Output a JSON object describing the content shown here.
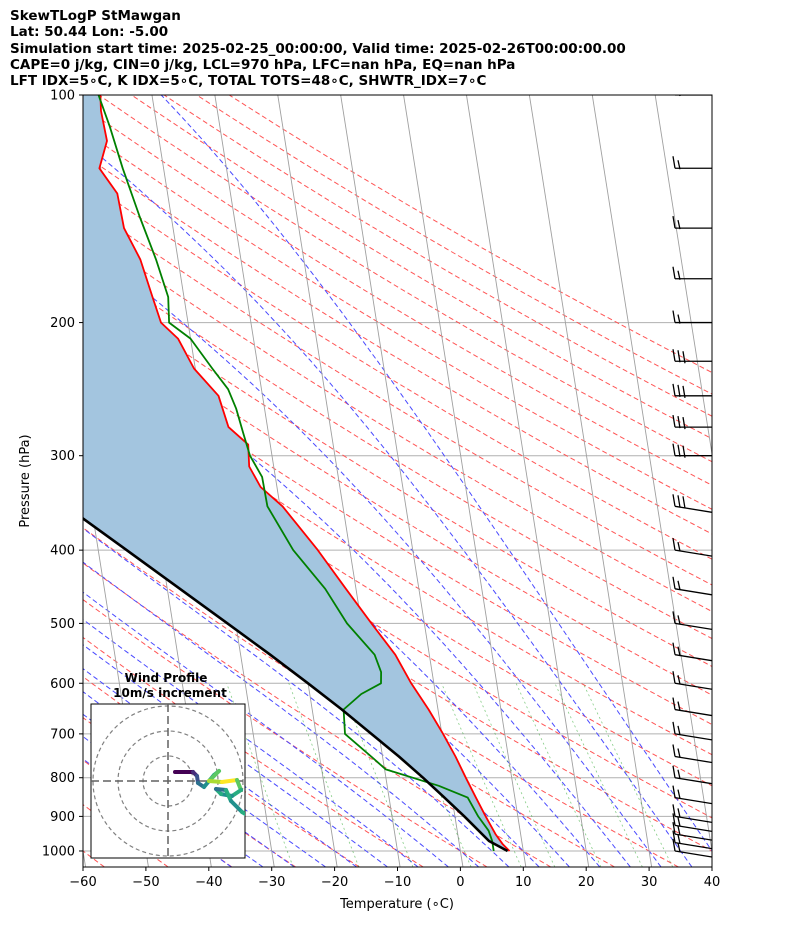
{
  "header": {
    "line1": "SkewTLogP StMawgan",
    "line2": "Lat: 50.44   Lon: -5.00",
    "line3": "Simulation start time: 2025-02-25_00:00:00, Valid time: 2025-02-26T00:00:00.00",
    "line4": "CAPE=0 j/kg, CIN=0 j/kg, LCL=970 hPa, LFC=nan hPa, EQ=nan hPa",
    "line5": "LFT IDX=5∘C, K IDX=5∘C, TOTAL TOTS=48∘C, SHWTR_IDX=7∘C"
  },
  "chart_data": {
    "type": "line",
    "title": "SkewTLogP StMawgan",
    "xlabel": "Temperature (∘C)",
    "ylabel": "Pressure (hPa)",
    "x_ticks": [
      -60,
      -50,
      -40,
      -30,
      -20,
      -10,
      0,
      10,
      20,
      30,
      40
    ],
    "x_tick_labels": [
      "−60",
      "−50",
      "−40",
      "−30",
      "−20",
      "−10",
      "0",
      "10",
      "20",
      "30",
      "40"
    ],
    "y_ticks": [
      1000,
      900,
      800,
      700,
      600,
      500,
      400,
      300,
      200,
      100
    ],
    "y_tick_labels": [
      "1000",
      "900",
      "800",
      "700",
      "600",
      "500",
      "400",
      "300",
      "200",
      "100"
    ],
    "xlim": [
      -60,
      40
    ],
    "ylim": [
      1050,
      100
    ],
    "y_scale": "log",
    "grid": true,
    "series": [
      {
        "name": "",
        "color": "#ff0000",
        "points": [
          [
            1000,
            7.8
          ],
          [
            980,
            6.9
          ],
          [
            950,
            6.0
          ],
          [
            900,
            4.9
          ],
          [
            850,
            3.8
          ],
          [
            800,
            2.7
          ],
          [
            750,
            1.6
          ],
          [
            700,
            0.2
          ],
          [
            650,
            -1.5
          ],
          [
            600,
            -3.6
          ],
          [
            550,
            -5.4
          ],
          [
            500,
            -8.4
          ],
          [
            450,
            -11.6
          ],
          [
            400,
            -15.1
          ],
          [
            350,
            -19.6
          ],
          [
            330,
            -22.6
          ],
          [
            310,
            -23.9
          ],
          [
            290,
            -23.5
          ],
          [
            275,
            -26.2
          ],
          [
            262,
            -26.6
          ],
          [
            250,
            -27.0
          ],
          [
            230,
            -30.2
          ],
          [
            210,
            -32.0
          ],
          [
            200,
            -34.3
          ],
          [
            185,
            -35.0
          ],
          [
            165,
            -36.0
          ],
          [
            150,
            -37.8
          ],
          [
            135,
            -38.0
          ],
          [
            125,
            -40.2
          ],
          [
            115,
            -38.3
          ],
          [
            105,
            -38.5
          ],
          [
            100,
            -38.2
          ]
        ]
      },
      {
        "name": "",
        "color": "#008000",
        "points": [
          [
            1000,
            5.3
          ],
          [
            970,
            5.3
          ],
          [
            940,
            5.0
          ],
          [
            900,
            3.7
          ],
          [
            850,
            2.5
          ],
          [
            820,
            -1.8
          ],
          [
            780,
            -9.8
          ],
          [
            750,
            -11.8
          ],
          [
            700,
            -15.4
          ],
          [
            650,
            -15.0
          ],
          [
            620,
            -11.8
          ],
          [
            600,
            -8.4
          ],
          [
            580,
            -8.1
          ],
          [
            550,
            -8.7
          ],
          [
            500,
            -12.3
          ],
          [
            450,
            -14.9
          ],
          [
            400,
            -19.0
          ],
          [
            350,
            -22.0
          ],
          [
            320,
            -22.1
          ],
          [
            300,
            -23.5
          ],
          [
            280,
            -24.0
          ],
          [
            260,
            -24.5
          ],
          [
            245,
            -25.3
          ],
          [
            230,
            -27.3
          ],
          [
            210,
            -30.0
          ],
          [
            200,
            -33.0
          ],
          [
            185,
            -32.5
          ],
          [
            165,
            -33.5
          ],
          [
            145,
            -35.0
          ],
          [
            125,
            -36.5
          ],
          [
            110,
            -37.5
          ],
          [
            100,
            -38.5
          ]
        ]
      },
      {
        "name": "",
        "color": "#000000",
        "points": [
          [
            1000,
            7.5
          ],
          [
            970,
            4.8
          ],
          [
            900,
            1.5
          ],
          [
            850,
            -1.2
          ],
          [
            800,
            -4.1
          ],
          [
            750,
            -7.4
          ],
          [
            700,
            -11.2
          ],
          [
            650,
            -15.3
          ],
          [
            600,
            -20.0
          ],
          [
            550,
            -25.3
          ],
          [
            500,
            -31.3
          ],
          [
            450,
            -38.0
          ],
          [
            400,
            -45.5
          ],
          [
            350,
            -54.0
          ],
          [
            300,
            -63.5
          ],
          [
            250,
            -74.0
          ],
          [
            200,
            -86.0
          ],
          [
            150,
            -100.0
          ],
          [
            100,
            -117.0
          ]
        ]
      }
    ]
  }
}
